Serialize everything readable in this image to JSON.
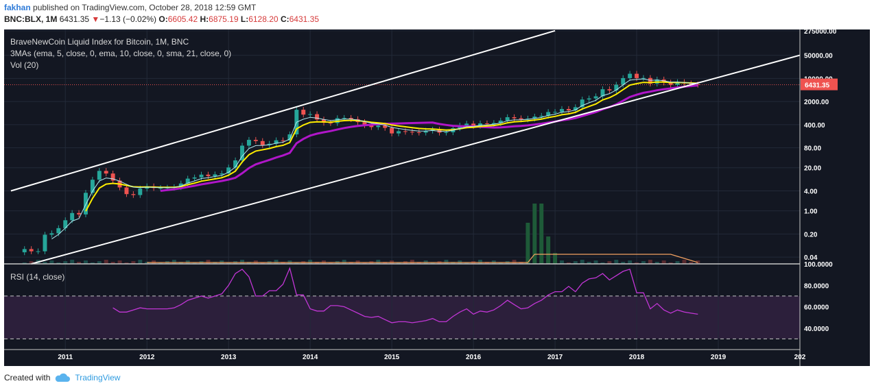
{
  "header": {
    "author": "fakhan",
    "published_text": "published on TradingView.com, October 28, 2018 12:59 GMT",
    "symbol": "BNC:BLX, 1M",
    "last": "6431.35",
    "change_arrow": "▼",
    "change": "−1.13 (−0.02%)",
    "open_label": "O:",
    "open": "6605.42",
    "high_label": "H:",
    "high": "6875.19",
    "low_label": "L:",
    "low": "6128.20",
    "close_label": "C:",
    "close": "6431.35"
  },
  "legend": {
    "line1": "BraveNewCoin Liquid Index for Bitcoin, 1M, BNC",
    "line2": "3MAs (ema, 5, close, 0, ema, 10, close, 0, sma, 21, close, 0)",
    "line3": "Vol (20)"
  },
  "rsi_legend": "RSI (14, close)",
  "footer": {
    "created_with": "Created with",
    "brand": "TradingView",
    "logo_icon": "cloud-icon"
  },
  "colors": {
    "chart_bg": "#131722",
    "rsi_band": "#2c1f3b",
    "up": "#26a69a",
    "down": "#ef5350",
    "ema5": "#b2ebf2",
    "ema10": "#ffee00",
    "sma21": "#b016c9",
    "rsi_line": "#c236d6",
    "channel": "#ffffff",
    "price_tag": "#ef5350",
    "vol_ma": "#f4a261"
  },
  "chart_data": [
    {
      "type": "candlestick",
      "title": "BraveNewCoin Liquid Index for Bitcoin, 1M, BNC",
      "y_scale": "log",
      "ylim": [
        0.025,
        300000
      ],
      "y_ticks": [
        "275000.00",
        "50000.00",
        "10000.00",
        "2000.00",
        "400.00",
        "80.00",
        "20.00",
        "4.00",
        "1.00",
        "0.20",
        "0.04"
      ],
      "x_ticks": [
        "2011",
        "2012",
        "2013",
        "2014",
        "2015",
        "2016",
        "2017",
        "2018",
        "2019",
        "202"
      ],
      "xlim": [
        "2010-04",
        "2020-01"
      ],
      "last_price_label": "6431.35",
      "monthly_closes": [
        [
          "2010-07",
          0.07
        ],
        [
          "2010-08",
          0.06
        ],
        [
          "2010-09",
          0.06
        ],
        [
          "2010-10",
          0.19
        ],
        [
          "2010-11",
          0.21
        ],
        [
          "2010-12",
          0.3
        ],
        [
          "2011-01",
          0.52
        ],
        [
          "2011-02",
          0.86
        ],
        [
          "2011-03",
          0.78
        ],
        [
          "2011-04",
          3.5
        ],
        [
          "2011-05",
          8.7
        ],
        [
          "2011-06",
          16.1
        ],
        [
          "2011-07",
          13.4
        ],
        [
          "2011-08",
          8.2
        ],
        [
          "2011-09",
          5.1
        ],
        [
          "2011-10",
          3.2
        ],
        [
          "2011-11",
          3.0
        ],
        [
          "2011-12",
          4.7
        ],
        [
          "2012-01",
          5.5
        ],
        [
          "2012-02",
          4.9
        ],
        [
          "2012-03",
          4.9
        ],
        [
          "2012-04",
          5.0
        ],
        [
          "2012-05",
          5.2
        ],
        [
          "2012-06",
          6.7
        ],
        [
          "2012-07",
          9.4
        ],
        [
          "2012-08",
          10.2
        ],
        [
          "2012-09",
          12.4
        ],
        [
          "2012-10",
          11.2
        ],
        [
          "2012-11",
          12.6
        ],
        [
          "2012-12",
          13.5
        ],
        [
          "2013-01",
          20.4
        ],
        [
          "2013-02",
          33.4
        ],
        [
          "2013-03",
          93.0
        ],
        [
          "2013-04",
          139.0
        ],
        [
          "2013-05",
          128.0
        ],
        [
          "2013-06",
          97.0
        ],
        [
          "2013-07",
          106.0
        ],
        [
          "2013-08",
          135.0
        ],
        [
          "2013-09",
          133.0
        ],
        [
          "2013-10",
          204.0
        ],
        [
          "2013-11",
          1129.0
        ],
        [
          "2013-12",
          805.0
        ],
        [
          "2014-01",
          830.0
        ],
        [
          "2014-02",
          573.0
        ],
        [
          "2014-03",
          457.0
        ],
        [
          "2014-04",
          447.0
        ],
        [
          "2014-05",
          628.0
        ],
        [
          "2014-06",
          640.0
        ],
        [
          "2014-07",
          587.0
        ],
        [
          "2014-08",
          479.0
        ],
        [
          "2014-09",
          386.0
        ],
        [
          "2014-10",
          338.0
        ],
        [
          "2014-11",
          378.0
        ],
        [
          "2014-12",
          320.0
        ],
        [
          "2015-01",
          218.0
        ],
        [
          "2015-02",
          254.0
        ],
        [
          "2015-03",
          244.0
        ],
        [
          "2015-04",
          236.0
        ],
        [
          "2015-05",
          230.0
        ],
        [
          "2015-06",
          263.0
        ],
        [
          "2015-07",
          284.0
        ],
        [
          "2015-08",
          230.0
        ],
        [
          "2015-09",
          236.0
        ],
        [
          "2015-10",
          314.0
        ],
        [
          "2015-11",
          377.0
        ],
        [
          "2015-12",
          430.0
        ],
        [
          "2016-01",
          369.0
        ],
        [
          "2016-02",
          437.0
        ],
        [
          "2016-03",
          416.0
        ],
        [
          "2016-04",
          448.0
        ],
        [
          "2016-05",
          531.0
        ],
        [
          "2016-06",
          673.0
        ],
        [
          "2016-07",
          624.0
        ],
        [
          "2016-08",
          575.0
        ],
        [
          "2016-09",
          609.0
        ],
        [
          "2016-10",
          701.0
        ],
        [
          "2016-11",
          742.0
        ],
        [
          "2016-12",
          963.0
        ],
        [
          "2017-01",
          970.0
        ],
        [
          "2017-02",
          1190.0
        ],
        [
          "2017-03",
          1080.0
        ],
        [
          "2017-04",
          1350.0
        ],
        [
          "2017-05",
          2300.0
        ],
        [
          "2017-06",
          2480.0
        ],
        [
          "2017-07",
          2875.0
        ],
        [
          "2017-08",
          4700.0
        ],
        [
          "2017-09",
          4340.0
        ],
        [
          "2017-10",
          6450.0
        ],
        [
          "2017-11",
          10200.0
        ],
        [
          "2017-12",
          13800.0
        ],
        [
          "2018-01",
          10200.0
        ],
        [
          "2018-02",
          10300.0
        ],
        [
          "2018-03",
          6930.0
        ],
        [
          "2018-04",
          9240.0
        ],
        [
          "2018-05",
          7490.0
        ],
        [
          "2018-06",
          6390.0
        ],
        [
          "2018-07",
          7730.0
        ],
        [
          "2018-08",
          7030.0
        ],
        [
          "2018-09",
          6620.0
        ],
        [
          "2018-10",
          6431.35
        ]
      ],
      "series": [
        {
          "name": "ema 5",
          "source": "close"
        },
        {
          "name": "ema 10",
          "source": "close"
        },
        {
          "name": "sma 21",
          "source": "close"
        }
      ],
      "channel_lines": [
        {
          "from": [
            "2010-05",
            4.0
          ],
          "to": [
            "2017-01",
            275000.0
          ]
        },
        {
          "from": [
            "2010-08",
            0.025
          ],
          "to": [
            "2020-01",
            50000.0
          ]
        }
      ]
    },
    {
      "type": "line",
      "title": "RSI (14, close)",
      "ylim": [
        20,
        100
      ],
      "y_ticks": [
        "100.0000",
        "80.0000",
        "60.0000",
        "40.0000"
      ],
      "bands": [
        30,
        70
      ],
      "x": [
        "2011-08",
        "2011-09",
        "2011-10",
        "2011-11",
        "2011-12",
        "2012-01",
        "2012-02",
        "2012-03",
        "2012-04",
        "2012-05",
        "2012-06",
        "2012-07",
        "2012-08",
        "2012-09",
        "2012-10",
        "2012-11",
        "2012-12",
        "2013-01",
        "2013-02",
        "2013-03",
        "2013-04",
        "2013-05",
        "2013-06",
        "2013-07",
        "2013-08",
        "2013-09",
        "2013-10",
        "2013-11",
        "2013-12",
        "2014-01",
        "2014-02",
        "2014-03",
        "2014-04",
        "2014-05",
        "2014-06",
        "2014-07",
        "2014-08",
        "2014-09",
        "2014-10",
        "2014-11",
        "2014-12",
        "2015-01",
        "2015-02",
        "2015-03",
        "2015-04",
        "2015-05",
        "2015-06",
        "2015-07",
        "2015-08",
        "2015-09",
        "2015-10",
        "2015-11",
        "2015-12",
        "2016-01",
        "2016-02",
        "2016-03",
        "2016-04",
        "2016-05",
        "2016-06",
        "2016-07",
        "2016-08",
        "2016-09",
        "2016-10",
        "2016-11",
        "2016-12",
        "2017-01",
        "2017-02",
        "2017-03",
        "2017-04",
        "2017-05",
        "2017-06",
        "2017-07",
        "2017-08",
        "2017-09",
        "2017-10",
        "2017-11",
        "2017-12",
        "2018-01",
        "2018-02",
        "2018-03",
        "2018-04",
        "2018-05",
        "2018-06",
        "2018-07",
        "2018-08",
        "2018-09",
        "2018-10"
      ],
      "values": [
        59,
        55,
        55,
        57,
        59,
        58,
        58,
        58,
        58,
        59,
        62,
        66,
        68,
        70,
        68,
        70,
        72,
        80,
        91,
        95,
        88,
        70,
        70,
        75,
        75,
        81,
        96,
        71,
        71,
        58,
        56,
        56,
        61,
        61,
        60,
        57,
        54,
        51,
        50,
        51,
        48,
        45,
        46,
        46,
        45,
        46,
        47,
        49,
        46,
        46,
        51,
        55,
        58,
        53,
        56,
        55,
        57,
        61,
        66,
        62,
        58,
        59,
        63,
        66,
        71,
        74,
        74,
        79,
        74,
        82,
        86,
        87,
        91,
        85,
        89,
        93,
        95,
        73,
        73,
        58,
        63,
        57,
        54,
        57,
        55,
        54,
        53
      ]
    }
  ]
}
